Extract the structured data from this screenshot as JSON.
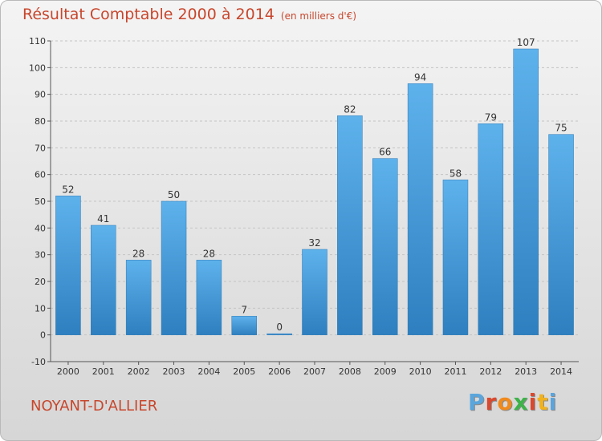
{
  "chart_data": {
    "type": "bar",
    "title": "Résultat Comptable 2000 à 2014",
    "subtitle": "(en milliers d'€)",
    "xlabel": "",
    "ylabel": "",
    "categories": [
      "2000",
      "2001",
      "2002",
      "2003",
      "2004",
      "2005",
      "2006",
      "2007",
      "2008",
      "2009",
      "2010",
      "2011",
      "2012",
      "2013",
      "2014"
    ],
    "values": [
      52,
      41,
      28,
      50,
      28,
      7,
      0,
      32,
      82,
      66,
      94,
      58,
      79,
      107,
      75
    ],
    "ylim": [
      -10,
      110
    ],
    "yticks": [
      -10,
      0,
      10,
      20,
      30,
      40,
      50,
      60,
      70,
      80,
      90,
      100,
      110
    ],
    "grid": "horizontal dashed",
    "legend": "none",
    "bar_color": "#3f96d6"
  },
  "footer": {
    "commune": "NOYANT-D'ALLIER",
    "logo_letters": [
      "P",
      "r",
      "o",
      "x",
      "i",
      "t",
      "i"
    ],
    "logo_colors": [
      "#5aa5db",
      "#d9492e",
      "#f08a1c",
      "#3db34a",
      "#d9492e",
      "#f2b21c",
      "#5aa5db"
    ]
  }
}
